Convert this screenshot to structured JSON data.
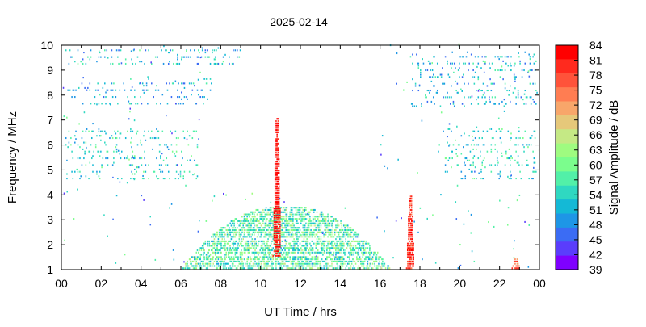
{
  "chart_data": {
    "type": "heatmap",
    "title": "2025-02-14",
    "xlabel": "UT Time / hrs",
    "ylabel": "Frequency / MHz",
    "colorbar_label": "Signal Amplitude / dB",
    "xlim": [
      0,
      24
    ],
    "ylim": [
      1,
      10
    ],
    "x_tick_labels": [
      "00",
      "02",
      "04",
      "06",
      "08",
      "10",
      "12",
      "14",
      "16",
      "18",
      "20",
      "22",
      "00"
    ],
    "y_tick_labels": [
      "1",
      "2",
      "3",
      "4",
      "5",
      "6",
      "7",
      "8",
      "9",
      "10"
    ],
    "colorbar": {
      "range": [
        39,
        84
      ],
      "tick_labels": [
        "39",
        "42",
        "45",
        "48",
        "51",
        "54",
        "57",
        "60",
        "63",
        "66",
        "69",
        "72",
        "75",
        "78",
        "81",
        "84"
      ],
      "colors": [
        "#7f00ff",
        "#5a3dfc",
        "#3b6cf4",
        "#1e96e6",
        "#14b9d6",
        "#2fd8c1",
        "#52f0a8",
        "#7bfd8d",
        "#9ffb80",
        "#c5e985",
        "#e6c87a",
        "#f8a66a",
        "#ff7d52",
        "#ff533a",
        "#ff2a1e",
        "#ff0000"
      ]
    },
    "features": [
      {
        "name": "night-band upper 9-10 MHz",
        "t_range": [
          0.2,
          9.2
        ],
        "f_range": [
          9.2,
          9.9
        ],
        "amp_db": [
          45,
          60
        ]
      },
      {
        "name": "night-band 7.5-8.5 MHz",
        "t_range": [
          0.2,
          7.5
        ],
        "f_range": [
          7.6,
          8.6
        ],
        "amp_db": [
          45,
          57
        ]
      },
      {
        "name": "night-band 5-6.5 MHz",
        "t_range": [
          0.2,
          6.8
        ],
        "f_range": [
          4.6,
          6.6
        ],
        "amp_db": [
          48,
          60
        ]
      },
      {
        "name": "late night-band 5-6.5 MHz",
        "t_range": [
          18.8,
          23.9
        ],
        "f_range": [
          4.6,
          6.6
        ],
        "amp_db": [
          48,
          60
        ]
      },
      {
        "name": "late night-band 7.5-9.7 MHz",
        "t_range": [
          17.5,
          23.9
        ],
        "f_range": [
          7.5,
          9.7
        ],
        "amp_db": [
          45,
          57
        ]
      },
      {
        "name": "daytime band 1-3.5 MHz",
        "t_range": [
          6.0,
          16.5
        ],
        "f_range": [
          1.0,
          3.5
        ],
        "amp_db": [
          50,
          66
        ]
      },
      {
        "name": "spike near 10.8 h",
        "t": 10.8,
        "f_range": [
          1.5,
          7.0
        ],
        "amp_db": [
          78,
          84
        ]
      },
      {
        "name": "spike near 17.5 h",
        "t": 17.5,
        "f_range": [
          1.0,
          3.9
        ],
        "amp_db": [
          75,
          84
        ]
      },
      {
        "name": "spike near 22.8 h",
        "t": 22.8,
        "f_range": [
          1.0,
          1.4
        ],
        "amp_db": [
          70,
          81
        ]
      }
    ]
  }
}
